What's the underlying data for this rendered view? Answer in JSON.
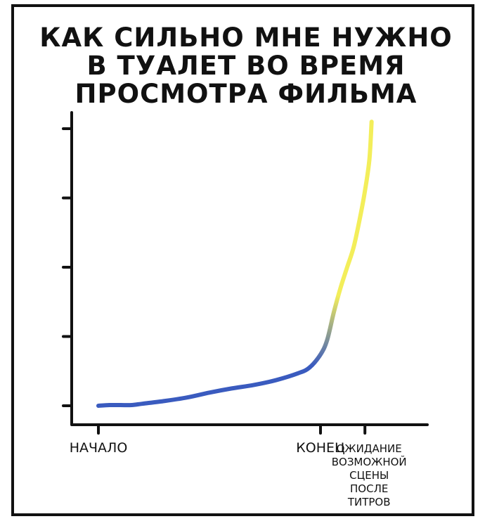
{
  "chart_data": {
    "type": "line",
    "title_lines": [
      "КАК СИЛЬНО МНЕ НУЖНО",
      "В ТУАЛЕТ ВО ВРЕМЯ",
      "ПРОСМОТРА ФИЛЬМА"
    ],
    "x_ticks": [
      {
        "id": "start",
        "x": 0,
        "label_lines": [
          "НАЧАЛО"
        ]
      },
      {
        "id": "end",
        "x": 1,
        "label_lines": [
          "КОНЕЦ"
        ]
      },
      {
        "id": "post-credits",
        "x": 1.2,
        "label_lines": [
          "ОЖИДАНИЕ",
          "ВОЗМОЖНОЙ",
          "СЦЕНЫ",
          "ПОСЛЕ",
          "ТИТРОВ"
        ]
      }
    ],
    "y_ticks": [
      0,
      1,
      2,
      3,
      4
    ],
    "xlim": [
      -0.1,
      1.5
    ],
    "ylim": [
      -0.25,
      4.1
    ],
    "grid": false,
    "series": [
      {
        "color_start": "#3a5bbf",
        "color_end": "#f3ee5a",
        "x": [
          0,
          0.05,
          0.1,
          0.15,
          0.2,
          0.3,
          0.4,
          0.5,
          0.6,
          0.7,
          0.8,
          0.9,
          0.95,
          1.0,
          1.03,
          1.06,
          1.09,
          1.12,
          1.15,
          1.18,
          1.2,
          1.22,
          1.23
        ],
        "y": [
          0.0,
          0.01,
          0.01,
          0.01,
          0.03,
          0.07,
          0.12,
          0.19,
          0.25,
          0.3,
          0.37,
          0.47,
          0.55,
          0.74,
          0.95,
          1.35,
          1.7,
          2.0,
          2.3,
          2.75,
          3.1,
          3.55,
          4.1
        ]
      }
    ]
  }
}
